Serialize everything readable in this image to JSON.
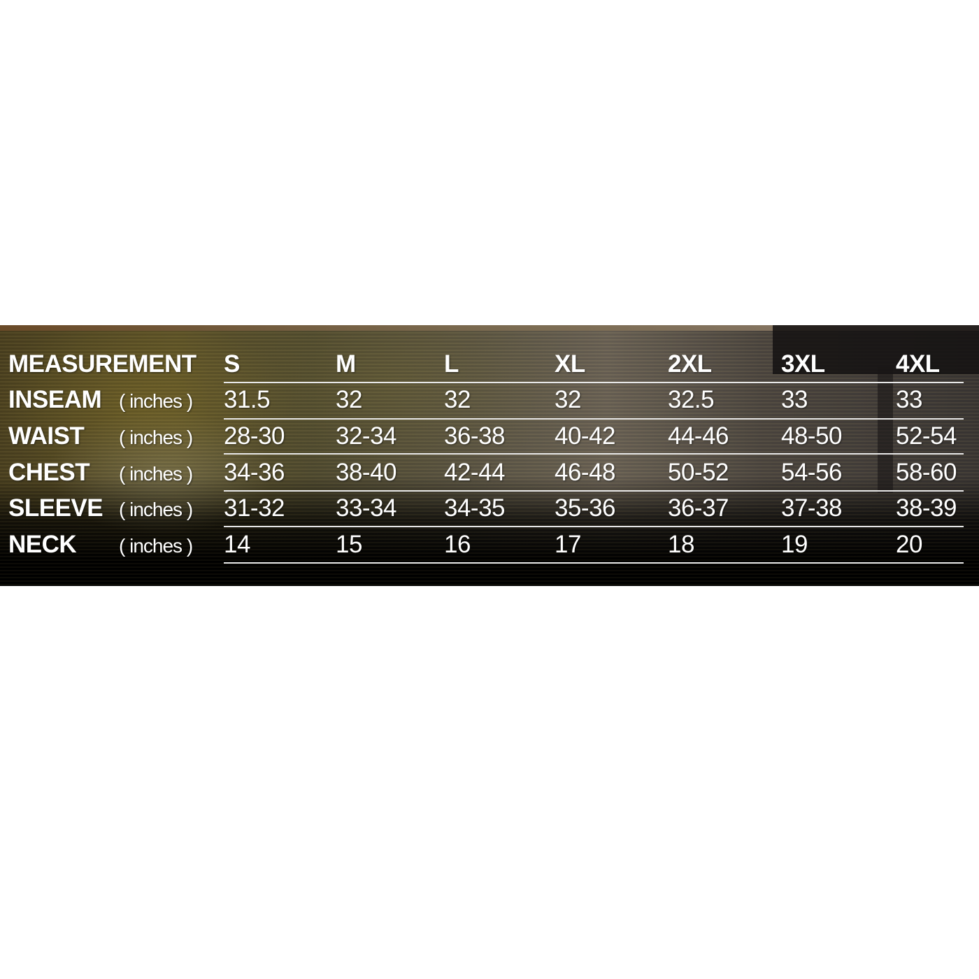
{
  "size_chart": {
    "header_label": "MEASUREMENT",
    "sizes": [
      "S",
      "M",
      "L",
      "XL",
      "2XL",
      "3XL",
      "4XL"
    ],
    "rows": [
      {
        "name": "INSEAM",
        "unit": "( inches )",
        "values": [
          "31.5",
          "32",
          "32",
          "32",
          "32.5",
          "33",
          "33"
        ]
      },
      {
        "name": "WAIST",
        "unit": "( inches )",
        "values": [
          "28-30",
          "32-34",
          "36-38",
          "40-42",
          "44-46",
          "48-50",
          "52-54"
        ]
      },
      {
        "name": "CHEST",
        "unit": "( inches )",
        "values": [
          "34-36",
          "38-40",
          "42-44",
          "46-48",
          "50-52",
          "54-56",
          "58-60"
        ]
      },
      {
        "name": "SLEEVE",
        "unit": "( inches )",
        "values": [
          "31-32",
          "33-34",
          "34-35",
          "35-36",
          "36-37",
          "37-38",
          "38-39"
        ]
      },
      {
        "name": "NECK",
        "unit": "( inches )",
        "values": [
          "14",
          "15",
          "16",
          "17",
          "18",
          "19",
          "20"
        ]
      }
    ]
  }
}
